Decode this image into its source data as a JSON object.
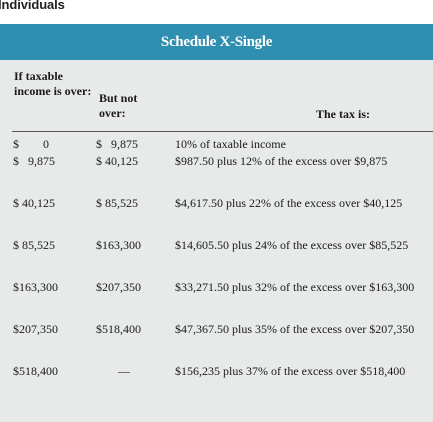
{
  "page": {
    "heading": "Individuals"
  },
  "table": {
    "title": "Schedule X-Single",
    "headers": {
      "col1": "If taxable income is over:",
      "col2": "But not over:",
      "col3": "The tax is:"
    },
    "rows": [
      {
        "over": "$        0",
        "but_not_over": "$   9,875",
        "tax": "10% of taxable income"
      },
      {
        "over": "$   9,875",
        "but_not_over": "$ 40,125",
        "tax": "$987.50 plus 12% of the excess over $9,875"
      },
      {
        "over": "$ 40,125",
        "but_not_over": "$ 85,525",
        "tax": "$4,617.50 plus 22% of the excess over $40,125"
      },
      {
        "over": "$ 85,525",
        "but_not_over": "$163,300",
        "tax": "$14,605.50 plus 24% of the excess over $85,525"
      },
      {
        "over": "$163,300",
        "but_not_over": "$207,350",
        "tax": "$33,271.50 plus 32% of the excess over $163,300"
      },
      {
        "over": "$207,350",
        "but_not_over": "$518,400",
        "tax": "$47,367.50 plus 35% of the excess over $207,350"
      },
      {
        "over": "$518,400",
        "but_not_over": "—",
        "tax": "$156,235 plus 37% of the excess over $518,400"
      }
    ]
  },
  "colors": {
    "banner": "#2f8fb0",
    "table_bg": "#e8eaea"
  }
}
